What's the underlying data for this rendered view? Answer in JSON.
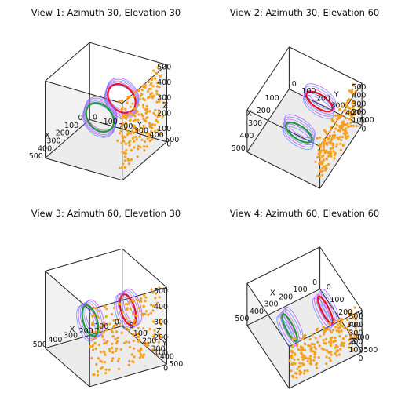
{
  "chart_data": [
    {
      "type": "scatter3d",
      "title": "View 1: Azimuth 30, Elevation 30",
      "azimuth": 30,
      "elevation": 30,
      "xlabel": "X",
      "ylabel": "Y",
      "zlabel": "Z",
      "xticks": [
        "0",
        "100",
        "200",
        "300",
        "400",
        "500"
      ],
      "yticks": [
        "0",
        "100",
        "200",
        "300",
        "400",
        "500"
      ],
      "zticks": [
        "0",
        "100",
        "200",
        "300",
        "400",
        "500"
      ]
    },
    {
      "type": "scatter3d",
      "title": "View 2: Azimuth 30, Elevation 60",
      "azimuth": 30,
      "elevation": 60,
      "xlabel": "X",
      "ylabel": "Y",
      "zlabel": "Z",
      "xticks": [
        "100",
        "200",
        "300",
        "400",
        "500"
      ],
      "yticks": [
        "0",
        "100",
        "200",
        "300",
        "400",
        "500"
      ],
      "zticks": [
        "0",
        "100",
        "200",
        "300",
        "400",
        "500"
      ]
    },
    {
      "type": "scatter3d",
      "title": "View 3: Azimuth 60, Elevation 30",
      "azimuth": 60,
      "elevation": 30,
      "xlabel": "X",
      "ylabel": "Y",
      "zlabel": "Z",
      "xticks": [
        "0",
        "100",
        "200",
        "300",
        "400",
        "500"
      ],
      "yticks": [
        "0",
        "100",
        "200",
        "300",
        "400",
        "500"
      ],
      "zticks": [
        "0",
        "100",
        "200",
        "300",
        "400",
        "500"
      ]
    },
    {
      "type": "scatter3d",
      "title": "View 4: Azimuth 60, Elevation 60",
      "azimuth": 60,
      "elevation": 60,
      "xlabel": "X",
      "ylabel": "Y",
      "zlabel": "Z",
      "xticks": [
        "0",
        "100",
        "200",
        "300",
        "400",
        "500"
      ],
      "yticks": [
        "0",
        "100",
        "200",
        "300",
        "400",
        "500"
      ],
      "zticks": [
        "0",
        "100",
        "200",
        "300",
        "400",
        "500"
      ]
    }
  ],
  "scene": {
    "axis_range": [
      0,
      500
    ],
    "rings": [
      {
        "name": "red ring",
        "color": "#e8132a",
        "center": [
          125,
          280,
          280
        ],
        "radius": 90,
        "plane": "x"
      },
      {
        "name": "green ring",
        "color": "#1e9a3a",
        "center": [
          370,
          280,
          280
        ],
        "radius": 90,
        "plane": "x"
      }
    ],
    "ring_mesh_colors": [
      "#b34cff",
      "#5a8cff",
      "#d25cff",
      "#7a6cff"
    ],
    "scatter": {
      "color": "#f5a01e",
      "count": 200,
      "y_range": [
        450,
        500
      ],
      "note_region": "points cluster near the y = 500 back wall"
    }
  }
}
